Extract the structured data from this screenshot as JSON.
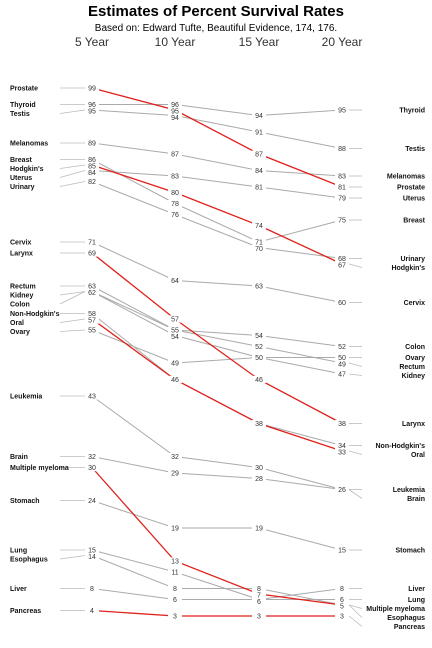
{
  "chart_data": {
    "type": "line",
    "title": "Estimates of Percent Survival Rates",
    "subtitle": "Based on: Edward Tufte, Beautiful Evidence, 174, 176.",
    "categories": [
      "5 Year",
      "10 Year",
      "15 Year",
      "20 Year"
    ],
    "highlight_color": "#e0201b",
    "base_color": "#aaaaaa",
    "series": [
      {
        "name": "Prostate",
        "values": [
          99,
          95,
          87,
          81
        ],
        "highlight": true
      },
      {
        "name": "Thyroid",
        "values": [
          96,
          96,
          94,
          95
        ],
        "highlight": false
      },
      {
        "name": "Testis",
        "values": [
          95,
          94,
          91,
          88
        ],
        "highlight": false
      },
      {
        "name": "Melanomas",
        "values": [
          89,
          87,
          84,
          83
        ],
        "highlight": false
      },
      {
        "name": "Breast",
        "values": [
          86,
          78,
          71,
          75
        ],
        "highlight": false
      },
      {
        "name": "Hodgkin's",
        "values": [
          85,
          80,
          74,
          67
        ],
        "highlight": true
      },
      {
        "name": "Uterus",
        "values": [
          84,
          83,
          81,
          79
        ],
        "highlight": false
      },
      {
        "name": "Urinary",
        "values": [
          82,
          76,
          70,
          68
        ],
        "highlight": false
      },
      {
        "name": "Cervix",
        "values": [
          71,
          64,
          63,
          60
        ],
        "highlight": false
      },
      {
        "name": "Larynx",
        "values": [
          69,
          57,
          46,
          38
        ],
        "highlight": true
      },
      {
        "name": "Rectum",
        "values": [
          63,
          55,
          52,
          49
        ],
        "highlight": false
      },
      {
        "name": "Kidney",
        "values": [
          62,
          54,
          50,
          47
        ],
        "highlight": false
      },
      {
        "name": "Colon",
        "values": [
          62,
          55,
          54,
          52
        ],
        "highlight": false
      },
      {
        "name": "Non-Hodgkin's",
        "values": [
          58,
          46,
          38,
          34
        ],
        "highlight": false
      },
      {
        "name": "Oral",
        "values": [
          57,
          46,
          38,
          33
        ],
        "highlight": true
      },
      {
        "name": "Ovary",
        "values": [
          55,
          49,
          50,
          50
        ],
        "highlight": false
      },
      {
        "name": "Leukemia",
        "values": [
          43,
          32,
          30,
          26
        ],
        "highlight": false
      },
      {
        "name": "Brain",
        "values": [
          32,
          29,
          28,
          26
        ],
        "highlight": false
      },
      {
        "name": "Multiple myeloma",
        "values": [
          30,
          13,
          7,
          5
        ],
        "highlight": true
      },
      {
        "name": "Stomach",
        "values": [
          24,
          19,
          19,
          15
        ],
        "highlight": false
      },
      {
        "name": "Lung",
        "values": [
          15,
          11,
          6,
          6
        ],
        "highlight": false
      },
      {
        "name": "Esophagus",
        "values": [
          14,
          8,
          8,
          5
        ],
        "highlight": false
      },
      {
        "name": "Liver",
        "values": [
          8,
          6,
          6,
          8
        ],
        "highlight": false
      },
      {
        "name": "Pancreas",
        "values": [
          4,
          3,
          3,
          3
        ],
        "highlight": true
      }
    ],
    "left_label_values": [
      99,
      96,
      95,
      89,
      86,
      85,
      84,
      82,
      71,
      69,
      63,
      62,
      58,
      57,
      55,
      43,
      32,
      30,
      24,
      15,
      14,
      8,
      4
    ],
    "right_labels": [
      {
        "text": "Thyroid",
        "value": 95
      },
      {
        "text": "Testis",
        "value": 88
      },
      {
        "text": "Melanomas",
        "value": 83
      },
      {
        "text": "Prostate",
        "value": 81
      },
      {
        "text": "Uterus",
        "value": 79
      },
      {
        "text": "Breast",
        "value": 75
      },
      {
        "text": "Urinary",
        "value": 68
      },
      {
        "text": "Hodgkin's",
        "value": 67
      },
      {
        "text": "Cervix",
        "value": 60
      },
      {
        "text": "Colon",
        "value": 52
      },
      {
        "text": "Ovary",
        "value": 50
      },
      {
        "text": "Rectum",
        "value": 49
      },
      {
        "text": "Kidney",
        "value": 47
      },
      {
        "text": "Larynx",
        "value": 38
      },
      {
        "text": "Non-Hodgkin's",
        "value": 34
      },
      {
        "text": "Oral",
        "value": 33
      },
      {
        "text": "Leukemia",
        "value": 26
      },
      {
        "text": "Brain",
        "value": 26
      },
      {
        "text": "Stomach",
        "value": 15
      },
      {
        "text": "Liver",
        "value": 8
      },
      {
        "text": "Lung",
        "value": 6
      },
      {
        "text": "Multiple myeloma",
        "value": 5
      },
      {
        "text": "Esophagus",
        "value": 5
      },
      {
        "text": "Pancreas",
        "value": 3
      }
    ]
  }
}
